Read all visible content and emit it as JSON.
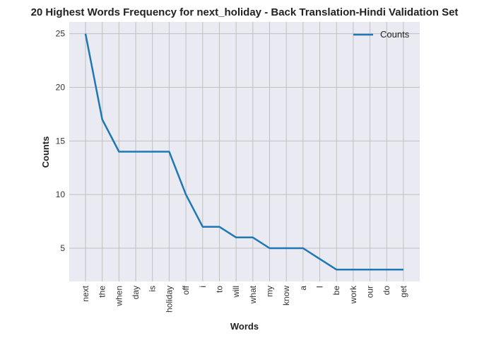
{
  "chart_data": {
    "type": "line",
    "title": "20 Highest Words Frequency for next_holiday - Back Translation-Hindi Validation Set",
    "xlabel": "Words",
    "ylabel": "Counts",
    "categories": [
      "next",
      "the",
      "when",
      "day",
      "is",
      "holiday",
      "off",
      "i",
      "to",
      "will",
      "what",
      "my",
      "know",
      "a",
      "I",
      "be",
      "work",
      "our",
      "do",
      "get"
    ],
    "series": [
      {
        "name": "Counts",
        "values": [
          25,
          17,
          14,
          14,
          14,
          14,
          10,
          7,
          7,
          6,
          6,
          5,
          5,
          5,
          4,
          3,
          3,
          3,
          3,
          3
        ],
        "color": "#1f77b4"
      }
    ],
    "yticks": [
      5,
      10,
      15,
      20,
      25
    ],
    "ylim": [
      1.9,
      26.1
    ],
    "grid": true,
    "legend": "top-right",
    "background": "#eaeaf2",
    "grid_color": "#c0c0c0"
  }
}
